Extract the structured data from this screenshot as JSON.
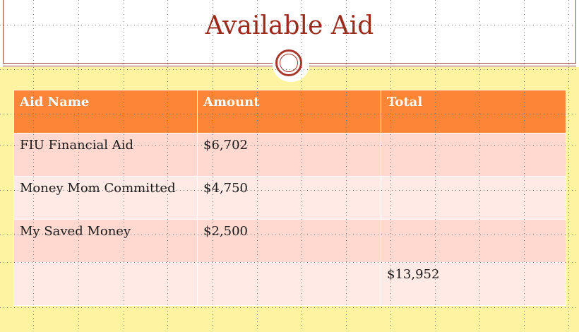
{
  "slide": {
    "title": "Available Aid"
  },
  "table": {
    "headers": [
      "Aid Name",
      "Amount",
      "Total"
    ],
    "rows": [
      [
        "FIU Financial Aid",
        "$6,702",
        ""
      ],
      [
        "Money Mom Committed",
        "$4,750",
        ""
      ],
      [
        "My Saved Money",
        "$2,500",
        ""
      ],
      [
        "",
        "",
        "$13,952"
      ]
    ]
  },
  "colors": {
    "title": "#9b2b1c",
    "header_fill": "#fd8537",
    "row_band_1": "#ffd8cf",
    "row_band_2": "#ffeae5",
    "background": "#fef3a0",
    "accent": "#a8362a"
  }
}
